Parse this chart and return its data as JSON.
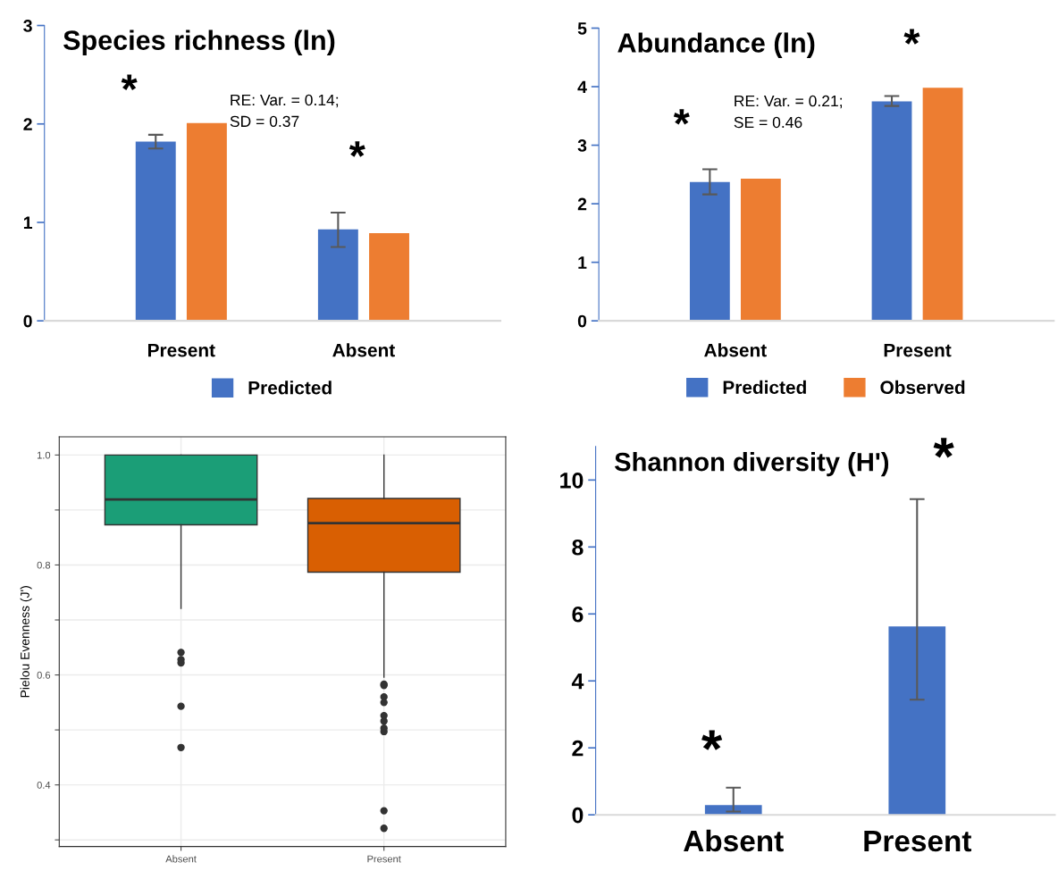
{
  "chart_data": [
    {
      "type": "bar",
      "title": "Species richness (ln)",
      "categories": [
        "Present",
        "Absent"
      ],
      "ylim": [
        0,
        3
      ],
      "yticks": [
        0,
        1,
        2,
        3
      ],
      "legend": "bottom",
      "grid": false,
      "series": [
        {
          "name": "Predicted",
          "color": "#4472c4",
          "values": [
            1.82,
            0.93
          ],
          "errors": [
            [
              1.75,
              1.89
            ],
            [
              0.75,
              1.1
            ]
          ]
        },
        {
          "color": "#ed7d31",
          "values": [
            2.01,
            0.89
          ]
        }
      ],
      "annotations": [
        "*",
        "*",
        "RE: Var. = 0.14;\nSD = 0.37"
      ]
    },
    {
      "type": "bar",
      "title": "Abundance (ln)",
      "categories": [
        "Absent",
        "Present"
      ],
      "ylim": [
        0,
        5
      ],
      "yticks": [
        0,
        1,
        2,
        3,
        4,
        5
      ],
      "legend": "bottom",
      "grid": false,
      "series": [
        {
          "name": "Predicted",
          "color": "#4472c4",
          "values": [
            2.37,
            3.75
          ],
          "errors": [
            [
              2.16,
              2.59
            ],
            [
              3.67,
              3.84
            ]
          ]
        },
        {
          "name": "Observed",
          "color": "#ed7d31",
          "values": [
            2.43,
            3.98
          ]
        }
      ],
      "annotations": [
        "*",
        "*",
        "RE: Var. = 0.21;\nSE = 0.46"
      ]
    },
    {
      "type": "box",
      "ylabel": "Pielou Evenness (J')",
      "categories": [
        "Absent",
        "Present"
      ],
      "ylim": [
        0.288,
        1.033
      ],
      "yticks": [
        {
          "value": 0.3,
          "label": null
        },
        {
          "value": 0.4,
          "label": "0.4"
        },
        {
          "value": 0.5,
          "label": null
        },
        {
          "value": 0.6,
          "label": "0.6"
        },
        {
          "value": 0.7,
          "label": null
        },
        {
          "value": 0.8,
          "label": "0.8"
        },
        {
          "value": 0.9,
          "label": null
        },
        {
          "value": 1.0,
          "label": "1.0"
        }
      ],
      "grid": true,
      "series": [
        {
          "colors": [
            "#1b9e77",
            "#d95f02"
          ],
          "boxes": [
            {
              "low": 0.721,
              "q1": 0.873,
              "median": 0.919,
              "q3": 1.0,
              "high": 1.0,
              "outliers": [
                0.641,
                0.628,
                0.622,
                0.543,
                0.468
              ]
            },
            {
              "low": 0.596,
              "q1": 0.787,
              "median": 0.876,
              "q3": 0.921,
              "high": 1.0,
              "outliers": [
                0.583,
                0.581,
                0.56,
                0.55,
                0.526,
                0.516,
                0.503,
                0.497,
                0.353,
                0.321
              ]
            }
          ]
        }
      ]
    },
    {
      "type": "bar",
      "title": "Shannon diversity (H')",
      "categories": [
        "Absent",
        "Present"
      ],
      "ylim": [
        0,
        11
      ],
      "yticks": [
        0,
        2,
        4,
        6,
        8,
        10
      ],
      "grid": false,
      "series": [
        {
          "color": "#4472c4",
          "values": [
            0.29,
            5.63
          ],
          "errors": [
            [
              0.1,
              0.81
            ],
            [
              3.44,
              9.43
            ]
          ]
        }
      ],
      "annotations": [
        "*",
        "*"
      ]
    }
  ]
}
